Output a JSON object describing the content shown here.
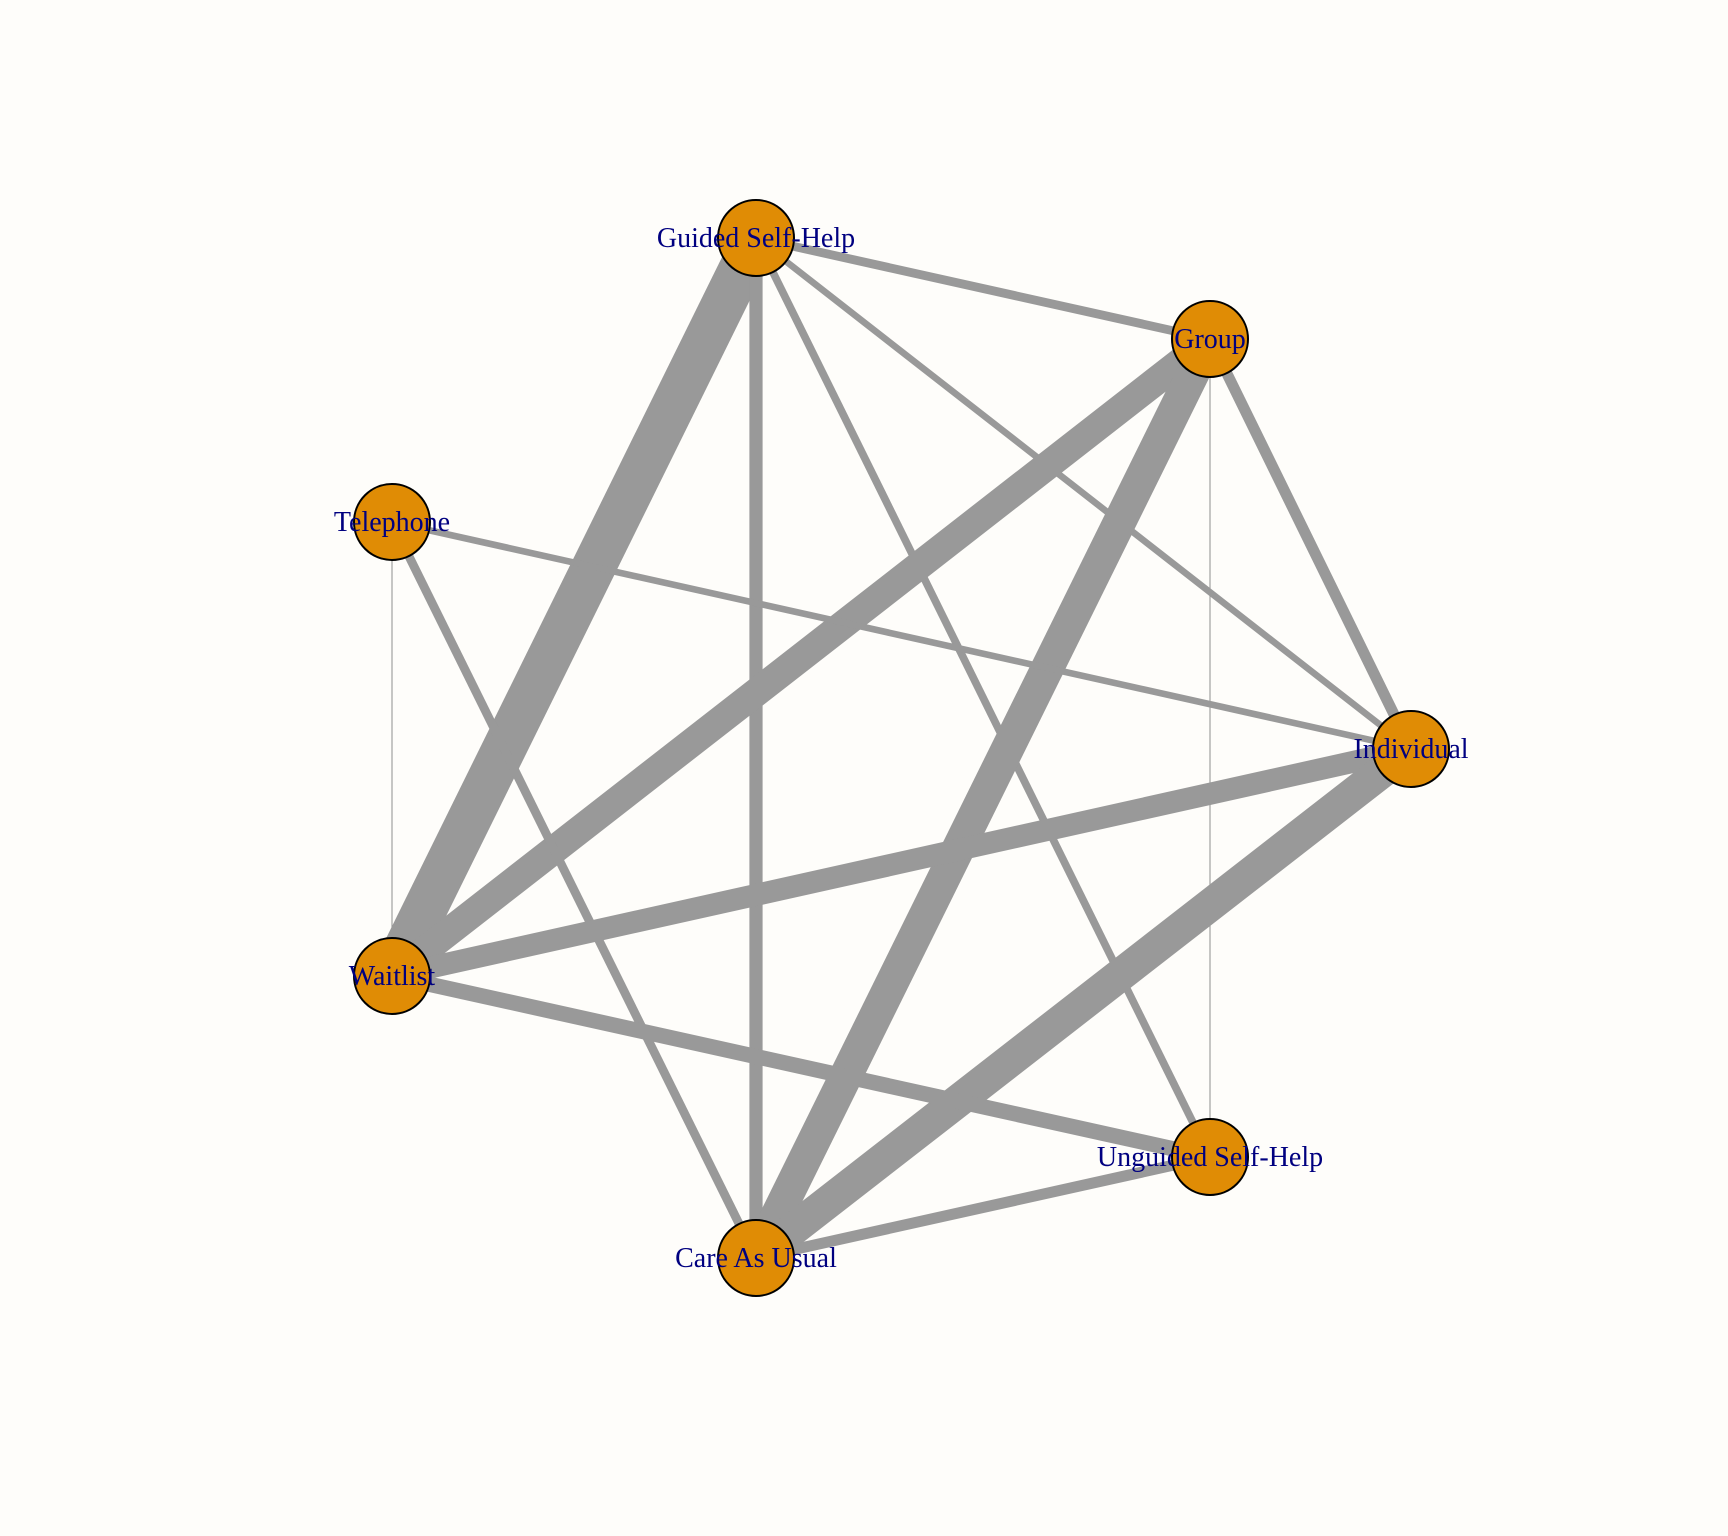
{
  "colors": {
    "background": "#fefdfa",
    "node_fill": "#e08c05",
    "node_stroke": "#000000",
    "edge": "#999999",
    "label": "#000080"
  },
  "nodes": [
    {
      "id": "gsh",
      "label": "Guided Self-Help"
    },
    {
      "id": "group",
      "label": "Group"
    },
    {
      "id": "tel",
      "label": "Telephone"
    },
    {
      "id": "ind",
      "label": "Individual"
    },
    {
      "id": "wl",
      "label": "Waitlist"
    },
    {
      "id": "ush",
      "label": "Unguided Self-Help"
    },
    {
      "id": "cau",
      "label": "Care As Usual"
    }
  ],
  "edges": [
    {
      "from": "gsh",
      "to": "wl",
      "weight": 40
    },
    {
      "from": "gsh",
      "to": "group",
      "weight": 8
    },
    {
      "from": "gsh",
      "to": "ind",
      "weight": 6
    },
    {
      "from": "gsh",
      "to": "cau",
      "weight": 12
    },
    {
      "from": "gsh",
      "to": "ush",
      "weight": 7
    },
    {
      "from": "group",
      "to": "wl",
      "weight": 26
    },
    {
      "from": "group",
      "to": "cau",
      "weight": 30
    },
    {
      "from": "group",
      "to": "ind",
      "weight": 10
    },
    {
      "from": "group",
      "to": "ush",
      "weight": 1
    },
    {
      "from": "tel",
      "to": "wl",
      "weight": 1
    },
    {
      "from": "tel",
      "to": "cau",
      "weight": 8
    },
    {
      "from": "tel",
      "to": "ind",
      "weight": 6
    },
    {
      "from": "ind",
      "to": "wl",
      "weight": 20
    },
    {
      "from": "ind",
      "to": "cau",
      "weight": 30
    },
    {
      "from": "wl",
      "to": "ush",
      "weight": 14
    },
    {
      "from": "cau",
      "to": "ush",
      "weight": 10
    }
  ]
}
